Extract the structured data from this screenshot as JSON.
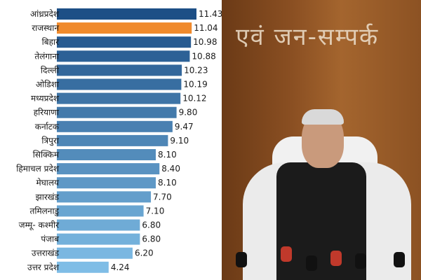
{
  "chart_data": {
    "type": "bar",
    "orientation": "horizontal",
    "categories": [
      "आंध्रप्रदेश",
      "राजस्थान",
      "बिहार",
      "तेलंगाना",
      "दिल्ली",
      "ओडिशा",
      "मध्यप्रदेश",
      "हरियाणा",
      "कर्नाटक",
      "त्रिपुरा",
      "सिक्किम",
      "हिमाचल प्रदेश",
      "मेघालय",
      "झारखंड",
      "तमिलनाडु",
      "जम्मू- कश्मीर",
      "पंजाब",
      "उत्तराखंड",
      "उत्तर प्रदेश"
    ],
    "values": [
      11.43,
      11.04,
      10.98,
      10.88,
      10.23,
      10.19,
      10.12,
      9.8,
      9.47,
      9.1,
      8.1,
      8.4,
      8.1,
      7.7,
      7.1,
      6.8,
      6.8,
      6.2,
      4.24
    ],
    "value_labels": [
      "11.43",
      "11.04",
      "10.98",
      "10.88",
      "10.23",
      "10.19",
      "10.12",
      "9.80",
      "9.47",
      "9.10",
      "8.10",
      "8.40",
      "8.10",
      "7.70",
      "7.10",
      "6.80",
      "6.80",
      "6.20",
      "4.24"
    ],
    "highlight_index": 1,
    "colors": {
      "highlight": "#f08a2c",
      "gradient_dark": "#1d4f86",
      "gradient_light": "#7fbde6"
    },
    "xlim": [
      0,
      11.43
    ],
    "grid": false,
    "legend": "none"
  },
  "photo": {
    "wall_text": "एवं जन-सम्पर्क"
  }
}
